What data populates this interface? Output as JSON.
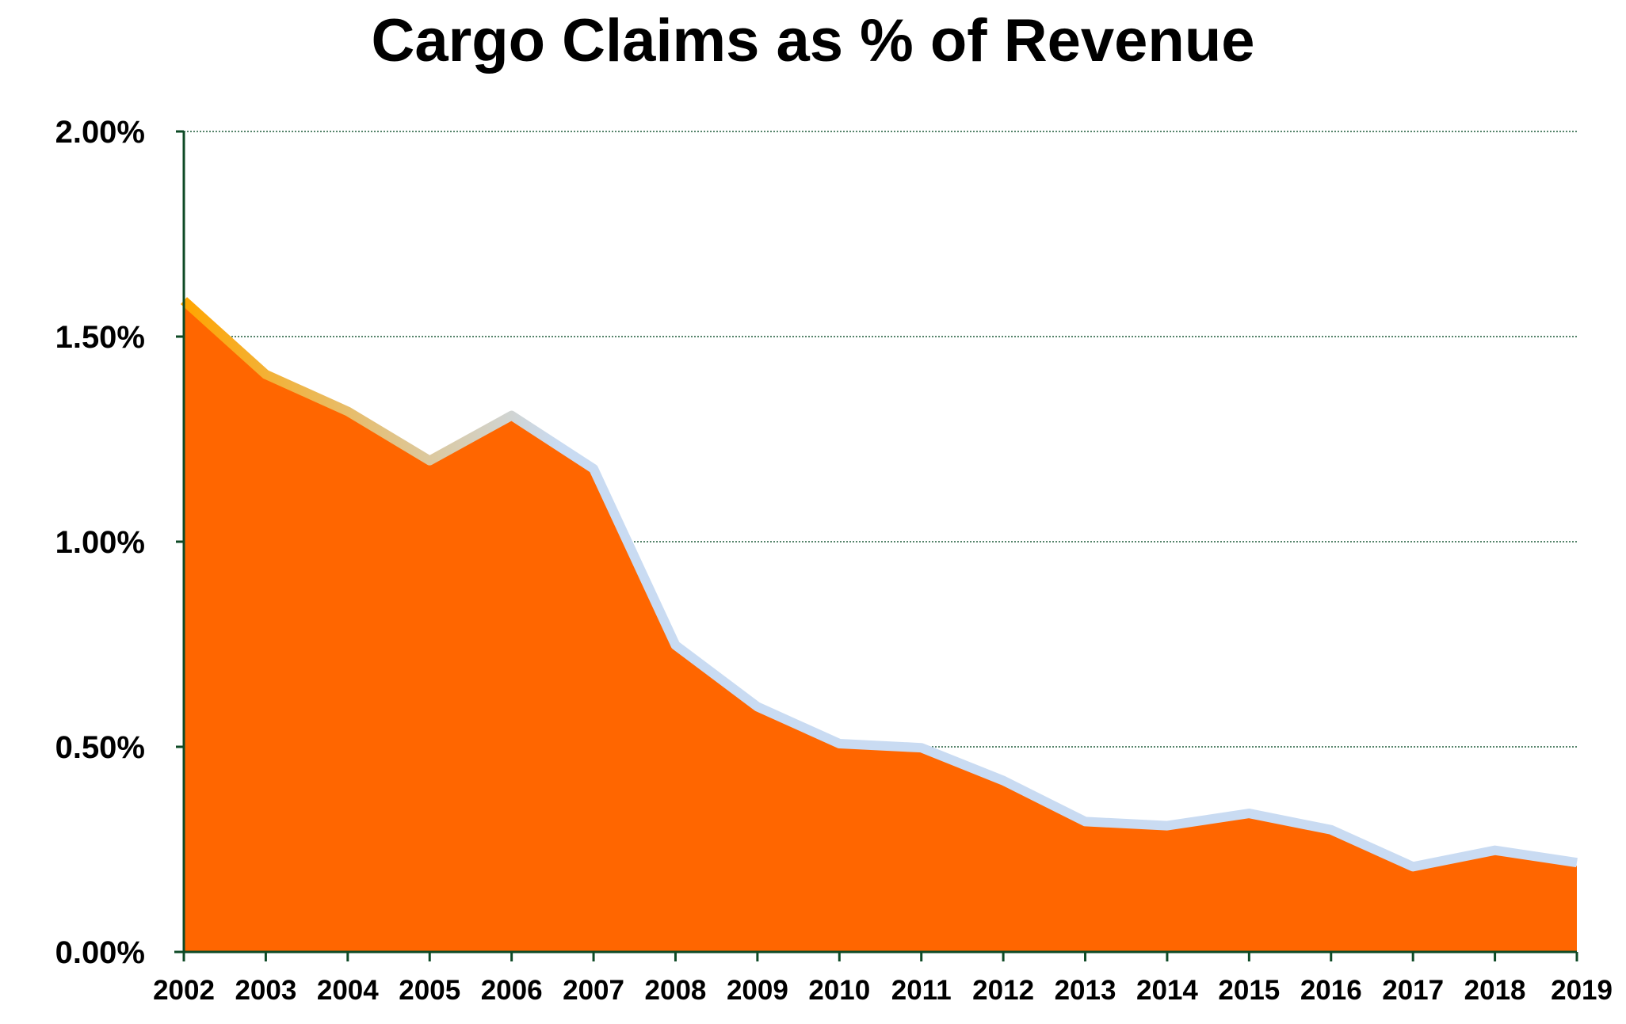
{
  "chart_data": {
    "type": "area",
    "title": "Cargo Claims as % of Revenue",
    "xlabel": "",
    "ylabel": "",
    "x": [
      "2002",
      "2003",
      "2004",
      "2005",
      "2006",
      "2007",
      "2008",
      "2009",
      "2010",
      "2011",
      "2012",
      "2013",
      "2014",
      "2015",
      "2016",
      "2017",
      "2018",
      "2019"
    ],
    "series": [
      {
        "values": [
          1.58,
          1.4,
          1.31,
          1.19,
          1.3,
          1.17,
          0.74,
          0.59,
          0.5,
          0.49,
          0.41,
          0.31,
          0.3,
          0.33,
          0.29,
          0.2,
          0.24,
          0.21
        ]
      }
    ],
    "ylim": [
      0,
      2
    ],
    "yticks": [
      "0.00%",
      "0.50%",
      "1.00%",
      "1.50%",
      "2.00%"
    ],
    "grid": true,
    "legend": "none",
    "colors": {
      "fill": "#FF6600",
      "outline_start": "#FFA500",
      "outline_end": "#C9DBF2",
      "gridline": "#1F5B3A",
      "axis": "#0E4A26"
    }
  }
}
